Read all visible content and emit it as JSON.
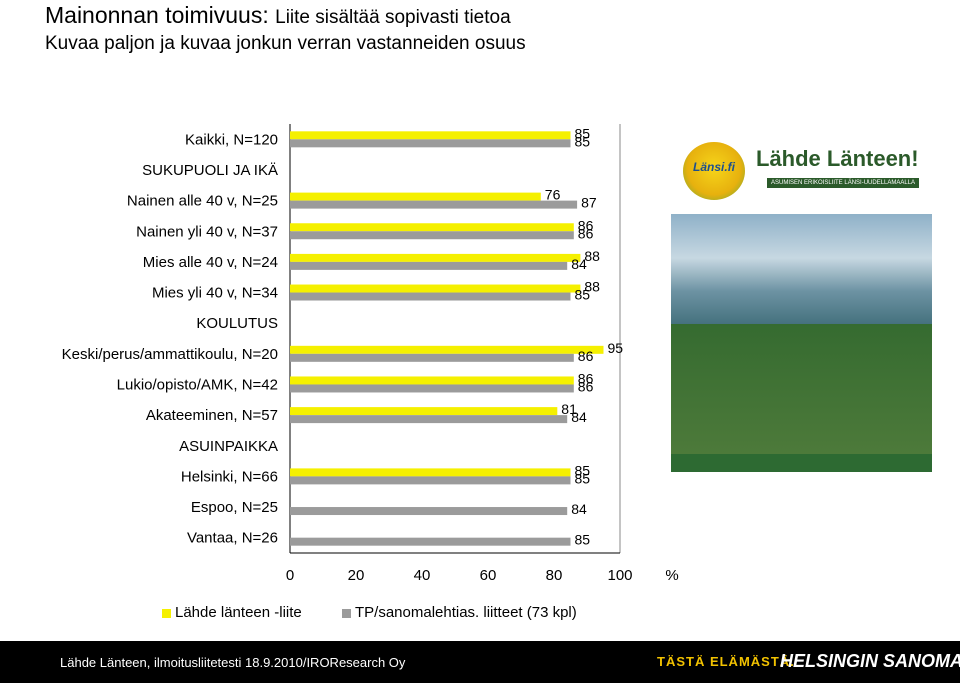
{
  "header": {
    "title_main": "Mainonnan toimivuus:",
    "title_sub": "Liite sisältää sopivasti tietoa",
    "subtitle": "Kuvaa paljon ja kuvaa jonkun verran vastanneiden osuus"
  },
  "chart_data": {
    "type": "bar",
    "orientation": "horizontal",
    "categories": [
      "Kaikki, N=120",
      "SUKUPUOLI JA IKÄ",
      "Nainen alle 40 v, N=25",
      "Nainen yli 40 v, N=37",
      "Mies alle 40 v, N=24",
      "Mies yli 40 v, N=34",
      "KOULUTUS",
      "Keski/perus/ammattikoulu, N=20",
      "Lukio/opisto/AMK, N=42",
      "Akateeminen, N=57",
      "ASUINPAIKKA",
      "Helsinki, N=66",
      "Espoo, N=25",
      "Vantaa, N=26"
    ],
    "series": [
      {
        "name": "Lähde länteen -liite",
        "color": "#f5f000",
        "values": [
          85,
          null,
          76,
          86,
          88,
          88,
          null,
          95,
          86,
          81,
          null,
          85,
          null,
          null
        ]
      },
      {
        "name": "TP/sanomalehtias. liitteet (73 kpl)",
        "color": "#9b9b9b",
        "values": [
          85,
          null,
          87,
          86,
          84,
          85,
          null,
          86,
          86,
          84,
          null,
          85,
          84,
          85
        ]
      }
    ],
    "xlim": [
      0,
      100
    ],
    "xticks": [
      "0",
      "20",
      "40",
      "60",
      "80",
      "100"
    ],
    "xunit": "%",
    "legend_position": "bottom"
  },
  "magazine": {
    "logo_text": "Länsi.fi",
    "brand": "Lähde Länteen!",
    "tagline": "ASUMISEN ERIKOISLIITE LÄNSI-UUDELLAMAALLA"
  },
  "footer": {
    "source": "Lähde Länteen, ilmoitusliitetesti 18.9.2010/IROResearch Oy",
    "slogan": "TÄSTÄ ELÄMÄSTÄ.",
    "brand": "HELSINGIN SANOMAT"
  }
}
